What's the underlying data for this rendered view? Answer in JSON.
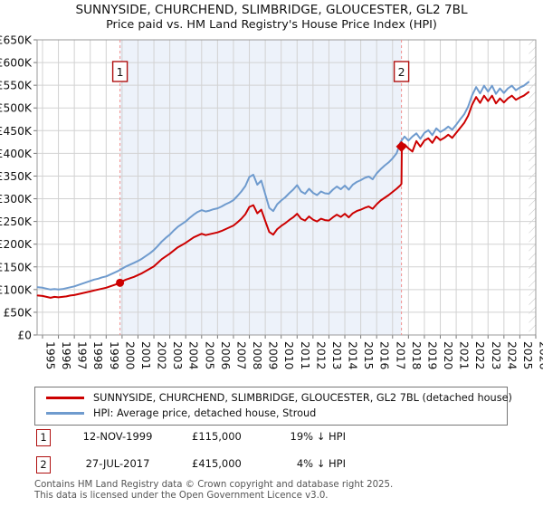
{
  "title": "SUNNYSIDE, CHURCHEND, SLIMBRIDGE, GLOUCESTER, GL2 7BL",
  "subtitle": "Price paid vs. HM Land Registry's House Price Index (HPI)",
  "chart_data": {
    "type": "line",
    "x_range": [
      1994.66,
      2026.0
    ],
    "y_range_k": [
      0,
      650
    ],
    "y_tick_step_k": 50,
    "y_unit": "GBP thousands",
    "grid": true,
    "y_tick_labels": [
      "£0",
      "£50K",
      "£100K",
      "£150K",
      "£200K",
      "£250K",
      "£300K",
      "£350K",
      "£400K",
      "£450K",
      "£500K",
      "£550K",
      "£600K",
      "£650K"
    ],
    "x_tick_years": [
      "1995",
      "1996",
      "1997",
      "1998",
      "1999",
      "2000",
      "2001",
      "2002",
      "2003",
      "2004",
      "2005",
      "2006",
      "2007",
      "2008",
      "2009",
      "2010",
      "2011",
      "2012",
      "2013",
      "2014",
      "2015",
      "2016",
      "2017",
      "2018",
      "2019",
      "2020",
      "2021",
      "2022",
      "2023",
      "2024",
      "2025",
      "2026"
    ],
    "colors": {
      "price_line": "#cc0000",
      "hpi_line": "#6f9bce",
      "shaded_span": "#edf2fa",
      "grid": "#d2d2d2",
      "plot_border": "#9a9a9a",
      "dashed_sale_line": "#f0908e",
      "marker_box_border": "#b01010",
      "hatch": "#c4c4c4"
    },
    "shaded_span": {
      "from": 1999.87,
      "to": 2017.56
    },
    "future_hatch_span": {
      "from": 2025.57,
      "to": 2026.0
    },
    "sale_markers": [
      {
        "label": "1",
        "x": 1999.87,
        "value_k": 115,
        "shape": "circle"
      },
      {
        "label": "2",
        "x": 2017.56,
        "value_k": 415,
        "shape": "diamond"
      }
    ],
    "series": [
      {
        "name": "SUNNYSIDE, CHURCHEND, SLIMBRIDGE, GLOUCESTER, GL2 7BL (detached house)",
        "color": "#cc0000",
        "width": 2,
        "points": [
          [
            1994.7,
            87
          ],
          [
            1995,
            86
          ],
          [
            1995.25,
            84
          ],
          [
            1995.5,
            82
          ],
          [
            1995.75,
            84
          ],
          [
            1996,
            83
          ],
          [
            1996.25,
            84
          ],
          [
            1996.5,
            85
          ],
          [
            1996.75,
            87
          ],
          [
            1997,
            88
          ],
          [
            1997.25,
            90
          ],
          [
            1997.5,
            92
          ],
          [
            1997.75,
            94
          ],
          [
            1998,
            96
          ],
          [
            1998.25,
            98
          ],
          [
            1998.5,
            100
          ],
          [
            1998.75,
            102
          ],
          [
            1999,
            104
          ],
          [
            1999.25,
            107
          ],
          [
            1999.5,
            110
          ],
          [
            1999.75,
            113
          ],
          [
            1999.87,
            115
          ],
          [
            2000,
            118
          ],
          [
            2000.25,
            122
          ],
          [
            2000.5,
            125
          ],
          [
            2000.75,
            128
          ],
          [
            2001,
            132
          ],
          [
            2001.25,
            136
          ],
          [
            2001.5,
            141
          ],
          [
            2001.75,
            146
          ],
          [
            2002,
            151
          ],
          [
            2002.25,
            159
          ],
          [
            2002.5,
            167
          ],
          [
            2002.75,
            173
          ],
          [
            2003,
            179
          ],
          [
            2003.25,
            186
          ],
          [
            2003.5,
            193
          ],
          [
            2003.75,
            198
          ],
          [
            2004,
            203
          ],
          [
            2004.25,
            209
          ],
          [
            2004.5,
            215
          ],
          [
            2004.75,
            219
          ],
          [
            2005,
            223
          ],
          [
            2005.25,
            220
          ],
          [
            2005.5,
            222
          ],
          [
            2005.75,
            224
          ],
          [
            2006,
            226
          ],
          [
            2006.25,
            229
          ],
          [
            2006.5,
            233
          ],
          [
            2006.75,
            237
          ],
          [
            2007,
            241
          ],
          [
            2007.25,
            248
          ],
          [
            2007.5,
            256
          ],
          [
            2007.75,
            266
          ],
          [
            2008,
            282
          ],
          [
            2008.25,
            286
          ],
          [
            2008.5,
            268
          ],
          [
            2008.75,
            276
          ],
          [
            2009,
            251
          ],
          [
            2009.25,
            227
          ],
          [
            2009.5,
            221
          ],
          [
            2009.75,
            233
          ],
          [
            2010,
            240
          ],
          [
            2010.25,
            246
          ],
          [
            2010.5,
            253
          ],
          [
            2010.75,
            259
          ],
          [
            2011,
            267
          ],
          [
            2011.25,
            256
          ],
          [
            2011.5,
            252
          ],
          [
            2011.75,
            261
          ],
          [
            2012,
            254
          ],
          [
            2012.25,
            250
          ],
          [
            2012.5,
            256
          ],
          [
            2012.75,
            253
          ],
          [
            2013,
            252
          ],
          [
            2013.25,
            259
          ],
          [
            2013.5,
            265
          ],
          [
            2013.75,
            260
          ],
          [
            2014,
            267
          ],
          [
            2014.25,
            259
          ],
          [
            2014.5,
            268
          ],
          [
            2014.75,
            273
          ],
          [
            2015,
            276
          ],
          [
            2015.25,
            280
          ],
          [
            2015.5,
            283
          ],
          [
            2015.75,
            278
          ],
          [
            2016,
            288
          ],
          [
            2016.25,
            296
          ],
          [
            2016.5,
            302
          ],
          [
            2016.75,
            308
          ],
          [
            2017,
            315
          ],
          [
            2017.25,
            322
          ],
          [
            2017.5,
            330
          ],
          [
            2017.56,
            333
          ],
          [
            2017.58,
            415
          ],
          [
            2017.75,
            420
          ],
          [
            2018,
            411
          ],
          [
            2018.25,
            404
          ],
          [
            2018.5,
            427
          ],
          [
            2018.75,
            415
          ],
          [
            2019,
            428
          ],
          [
            2019.25,
            433
          ],
          [
            2019.5,
            423
          ],
          [
            2019.75,
            437
          ],
          [
            2020,
            429
          ],
          [
            2020.25,
            434
          ],
          [
            2020.5,
            441
          ],
          [
            2020.75,
            434
          ],
          [
            2021,
            445
          ],
          [
            2021.25,
            456
          ],
          [
            2021.5,
            467
          ],
          [
            2021.75,
            483
          ],
          [
            2022,
            507
          ],
          [
            2022.25,
            524
          ],
          [
            2022.5,
            511
          ],
          [
            2022.75,
            527
          ],
          [
            2023,
            515
          ],
          [
            2023.25,
            527
          ],
          [
            2023.5,
            510
          ],
          [
            2023.75,
            521
          ],
          [
            2024,
            512
          ],
          [
            2024.25,
            521
          ],
          [
            2024.5,
            527
          ],
          [
            2024.75,
            518
          ],
          [
            2025,
            523
          ],
          [
            2025.25,
            527
          ],
          [
            2025.55,
            535
          ]
        ]
      },
      {
        "name": "HPI: Average price, detached house, Stroud",
        "color": "#6f9bce",
        "width": 2,
        "points": [
          [
            1994.7,
            105
          ],
          [
            1995,
            104
          ],
          [
            1995.25,
            102
          ],
          [
            1995.5,
            100
          ],
          [
            1995.75,
            101
          ],
          [
            1996,
            100
          ],
          [
            1996.25,
            101
          ],
          [
            1996.5,
            103
          ],
          [
            1996.75,
            105
          ],
          [
            1997,
            107
          ],
          [
            1997.25,
            110
          ],
          [
            1997.5,
            113
          ],
          [
            1997.75,
            116
          ],
          [
            1998,
            119
          ],
          [
            1998.25,
            122
          ],
          [
            1998.5,
            124
          ],
          [
            1998.75,
            127
          ],
          [
            1999,
            129
          ],
          [
            1999.25,
            133
          ],
          [
            1999.5,
            137
          ],
          [
            1999.75,
            141
          ],
          [
            2000,
            146
          ],
          [
            2000.25,
            151
          ],
          [
            2000.5,
            155
          ],
          [
            2000.75,
            159
          ],
          [
            2001,
            163
          ],
          [
            2001.25,
            168
          ],
          [
            2001.5,
            174
          ],
          [
            2001.75,
            180
          ],
          [
            2002,
            187
          ],
          [
            2002.25,
            196
          ],
          [
            2002.5,
            206
          ],
          [
            2002.75,
            214
          ],
          [
            2003,
            221
          ],
          [
            2003.25,
            230
          ],
          [
            2003.5,
            238
          ],
          [
            2003.75,
            244
          ],
          [
            2004,
            250
          ],
          [
            2004.25,
            258
          ],
          [
            2004.5,
            265
          ],
          [
            2004.75,
            271
          ],
          [
            2005,
            275
          ],
          [
            2005.25,
            272
          ],
          [
            2005.5,
            274
          ],
          [
            2005.75,
            277
          ],
          [
            2006,
            279
          ],
          [
            2006.25,
            283
          ],
          [
            2006.5,
            288
          ],
          [
            2006.75,
            292
          ],
          [
            2007,
            297
          ],
          [
            2007.25,
            306
          ],
          [
            2007.5,
            316
          ],
          [
            2007.75,
            328
          ],
          [
            2008,
            348
          ],
          [
            2008.25,
            353
          ],
          [
            2008.5,
            331
          ],
          [
            2008.75,
            340
          ],
          [
            2009,
            310
          ],
          [
            2009.25,
            280
          ],
          [
            2009.5,
            273
          ],
          [
            2009.75,
            288
          ],
          [
            2010,
            296
          ],
          [
            2010.25,
            303
          ],
          [
            2010.5,
            312
          ],
          [
            2010.75,
            320
          ],
          [
            2011,
            330
          ],
          [
            2011.25,
            316
          ],
          [
            2011.5,
            311
          ],
          [
            2011.75,
            322
          ],
          [
            2012,
            313
          ],
          [
            2012.25,
            308
          ],
          [
            2012.5,
            316
          ],
          [
            2012.75,
            312
          ],
          [
            2013,
            311
          ],
          [
            2013.25,
            320
          ],
          [
            2013.5,
            327
          ],
          [
            2013.75,
            321
          ],
          [
            2014,
            329
          ],
          [
            2014.25,
            320
          ],
          [
            2014.5,
            331
          ],
          [
            2014.75,
            337
          ],
          [
            2015,
            341
          ],
          [
            2015.25,
            346
          ],
          [
            2015.5,
            349
          ],
          [
            2015.75,
            343
          ],
          [
            2016,
            356
          ],
          [
            2016.25,
            365
          ],
          [
            2016.5,
            373
          ],
          [
            2016.75,
            380
          ],
          [
            2017,
            389
          ],
          [
            2017.25,
            400
          ],
          [
            2017.5,
            425
          ],
          [
            2017.75,
            437
          ],
          [
            2018,
            428
          ],
          [
            2018.25,
            437
          ],
          [
            2018.5,
            444
          ],
          [
            2018.75,
            432
          ],
          [
            2019,
            445
          ],
          [
            2019.25,
            451
          ],
          [
            2019.5,
            440
          ],
          [
            2019.75,
            455
          ],
          [
            2020,
            447
          ],
          [
            2020.25,
            452
          ],
          [
            2020.5,
            459
          ],
          [
            2020.75,
            452
          ],
          [
            2021,
            463
          ],
          [
            2021.25,
            475
          ],
          [
            2021.5,
            486
          ],
          [
            2021.75,
            503
          ],
          [
            2022,
            528
          ],
          [
            2022.25,
            546
          ],
          [
            2022.5,
            532
          ],
          [
            2022.75,
            549
          ],
          [
            2023,
            536
          ],
          [
            2023.25,
            549
          ],
          [
            2023.5,
            531
          ],
          [
            2023.75,
            543
          ],
          [
            2024,
            533
          ],
          [
            2024.25,
            543
          ],
          [
            2024.5,
            549
          ],
          [
            2024.75,
            539
          ],
          [
            2025,
            545
          ],
          [
            2025.25,
            549
          ],
          [
            2025.55,
            557
          ]
        ]
      }
    ]
  },
  "legend": {
    "items": [
      {
        "label": "SUNNYSIDE, CHURCHEND, SLIMBRIDGE, GLOUCESTER, GL2 7BL (detached house)",
        "color": "#cc0000"
      },
      {
        "label": "HPI: Average price, detached house, Stroud",
        "color": "#6f9bce"
      }
    ]
  },
  "annotations": [
    {
      "num": "1",
      "date": "12-NOV-1999",
      "price": "£115,000",
      "hpi": "19% ↓ HPI"
    },
    {
      "num": "2",
      "date": "27-JUL-2017",
      "price": "£415,000",
      "hpi": "4% ↓ HPI"
    }
  ],
  "footer": {
    "line1": "Contains HM Land Registry data © Crown copyright and database right 2025.",
    "line2": "This data is licensed under the Open Government Licence v3.0."
  }
}
